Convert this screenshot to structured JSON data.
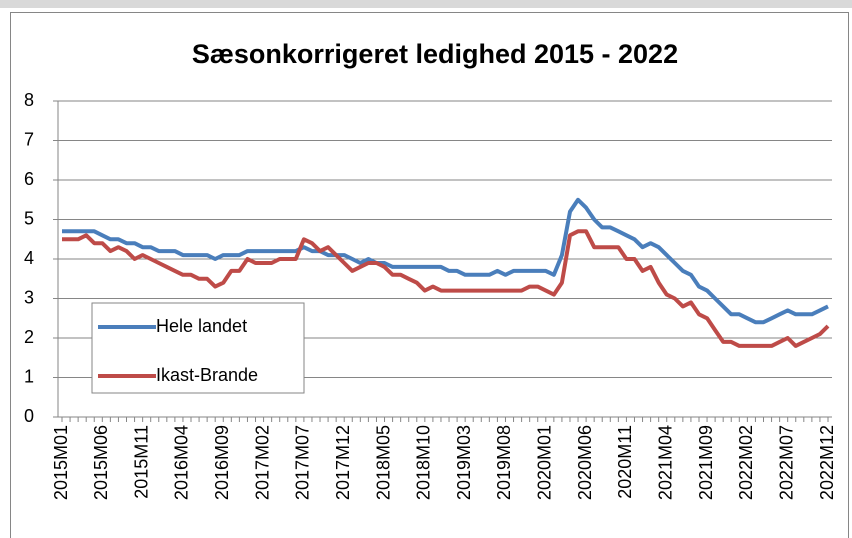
{
  "chart_data": {
    "type": "line",
    "title": "Sæsonkorrigeret ledighed 2015 - 2022",
    "categories": [
      "2015M01",
      null,
      null,
      null,
      null,
      "2015M06",
      null,
      null,
      null,
      null,
      "2015M11",
      null,
      null,
      null,
      null,
      "2016M04",
      null,
      null,
      null,
      null,
      "2016M09",
      null,
      null,
      null,
      null,
      "2017M02",
      null,
      null,
      null,
      null,
      "2017M07",
      null,
      null,
      null,
      null,
      "2017M12",
      null,
      null,
      null,
      null,
      "2018M05",
      null,
      null,
      null,
      null,
      "2018M10",
      null,
      null,
      null,
      null,
      "2019M03",
      null,
      null,
      null,
      null,
      "2019M08",
      null,
      null,
      null,
      null,
      "2020M01",
      null,
      null,
      null,
      null,
      "2020M06",
      null,
      null,
      null,
      null,
      "2020M11",
      null,
      null,
      null,
      null,
      "2021M04",
      null,
      null,
      null,
      null,
      "2021M09",
      null,
      null,
      null,
      null,
      "2022M02",
      null,
      null,
      null,
      null,
      "2022M07",
      null,
      null,
      null,
      null,
      "2022M12"
    ],
    "series": [
      {
        "name": "Hele landet",
        "color": "#4a7ebb",
        "values": [
          4.7,
          4.7,
          4.7,
          4.7,
          4.7,
          4.6,
          4.5,
          4.5,
          4.4,
          4.4,
          4.3,
          4.3,
          4.2,
          4.2,
          4.2,
          4.1,
          4.1,
          4.1,
          4.1,
          4.0,
          4.1,
          4.1,
          4.1,
          4.2,
          4.2,
          4.2,
          4.2,
          4.2,
          4.2,
          4.2,
          4.3,
          4.2,
          4.2,
          4.1,
          4.1,
          4.1,
          4.0,
          3.9,
          4.0,
          3.9,
          3.9,
          3.8,
          3.8,
          3.8,
          3.8,
          3.8,
          3.8,
          3.8,
          3.7,
          3.7,
          3.6,
          3.6,
          3.6,
          3.6,
          3.7,
          3.6,
          3.7,
          3.7,
          3.7,
          3.7,
          3.7,
          3.6,
          4.1,
          5.2,
          5.5,
          5.3,
          5.0,
          4.8,
          4.8,
          4.7,
          4.6,
          4.5,
          4.3,
          4.4,
          4.3,
          4.1,
          3.9,
          3.7,
          3.6,
          3.3,
          3.2,
          3.0,
          2.8,
          2.6,
          2.6,
          2.5,
          2.4,
          2.4,
          2.5,
          2.6,
          2.7,
          2.6,
          2.6,
          2.6,
          2.7,
          2.8
        ]
      },
      {
        "name": "Ikast-Brande",
        "color": "#be4b48",
        "values": [
          4.5,
          4.5,
          4.5,
          4.6,
          4.4,
          4.4,
          4.2,
          4.3,
          4.2,
          4.0,
          4.1,
          4.0,
          3.9,
          3.8,
          3.7,
          3.6,
          3.6,
          3.5,
          3.5,
          3.3,
          3.4,
          3.7,
          3.7,
          4.0,
          3.9,
          3.9,
          3.9,
          4.0,
          4.0,
          4.0,
          4.5,
          4.4,
          4.2,
          4.3,
          4.1,
          3.9,
          3.7,
          3.8,
          3.9,
          3.9,
          3.8,
          3.6,
          3.6,
          3.5,
          3.4,
          3.2,
          3.3,
          3.2,
          3.2,
          3.2,
          3.2,
          3.2,
          3.2,
          3.2,
          3.2,
          3.2,
          3.2,
          3.2,
          3.3,
          3.3,
          3.2,
          3.1,
          3.4,
          4.6,
          4.7,
          4.7,
          4.3,
          4.3,
          4.3,
          4.3,
          4.0,
          4.0,
          3.7,
          3.8,
          3.4,
          3.1,
          3.0,
          2.8,
          2.9,
          2.6,
          2.5,
          2.2,
          1.9,
          1.9,
          1.8,
          1.8,
          1.8,
          1.8,
          1.8,
          1.9,
          2.0,
          1.8,
          1.9,
          2.0,
          2.1,
          2.3
        ]
      }
    ],
    "ylim": [
      0,
      8
    ],
    "yticks": [
      0,
      1,
      2,
      3,
      4,
      5,
      6,
      7,
      8
    ],
    "grid": true,
    "legend": "lower left"
  }
}
